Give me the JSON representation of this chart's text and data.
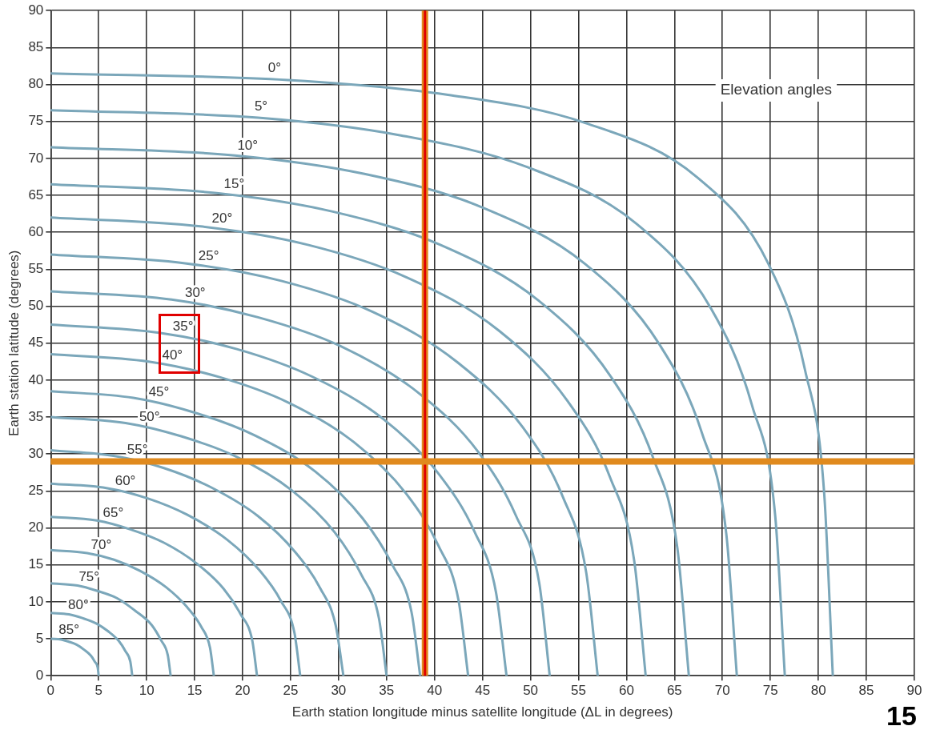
{
  "chart_data": {
    "type": "line",
    "xlabel": "Earth station longitude minus satellite longitude (ΔL in degrees)",
    "ylabel": "Earth station latitude (degrees)",
    "xlim": [
      0,
      90
    ],
    "xticks": [
      0,
      5,
      10,
      15,
      20,
      25,
      30,
      35,
      40,
      45,
      50,
      55,
      60,
      65,
      70,
      75,
      80,
      85,
      90
    ],
    "ylim": [
      0,
      90
    ],
    "yticks": [
      0,
      5,
      10,
      15,
      20,
      25,
      30,
      35,
      40,
      45,
      50,
      55,
      60,
      65,
      70,
      75,
      80,
      85,
      90
    ],
    "grid": true,
    "legend": false,
    "series": [
      {
        "name": "0°",
        "color": "#7ba7ba",
        "x": [
          0,
          24.7,
          41.4,
          55.7,
          67.4,
          74.8,
          78.6,
          80.6,
          81.5
        ],
        "values": [
          81.5,
          80.6,
          78.6,
          74.8,
          67.4,
          55.7,
          41.4,
          24.7,
          0
        ]
      },
      {
        "name": "5°",
        "color": "#7ba7ba",
        "x": [
          0,
          21.6,
          36.5,
          49.7,
          61.1,
          68.8,
          73.1,
          75.5,
          76.5
        ],
        "values": [
          76.5,
          75.5,
          73.1,
          68.8,
          61.1,
          49.7,
          36.5,
          21.6,
          0
        ]
      },
      {
        "name": "10°",
        "color": "#7ba7ba",
        "x": [
          0,
          19.2,
          32.7,
          44.9,
          55.7,
          63.4,
          67.9,
          70.4,
          71.5
        ],
        "values": [
          71.5,
          70.4,
          67.9,
          63.4,
          55.7,
          44.9,
          32.7,
          19.2,
          0
        ]
      },
      {
        "name": "15°",
        "color": "#7ba7ba",
        "x": [
          0,
          17.3,
          29.4,
          40.6,
          50.8,
          58.3,
          62.8,
          65.3,
          66.5
        ],
        "values": [
          66.5,
          65.3,
          62.8,
          58.3,
          50.8,
          40.6,
          29.4,
          17.3,
          0
        ]
      },
      {
        "name": "20°",
        "color": "#7ba7ba",
        "x": [
          0,
          15.6,
          26.8,
          37.1,
          46.7,
          53.9,
          58.3,
          60.8,
          62
        ],
        "values": [
          62,
          60.8,
          58.3,
          53.9,
          46.7,
          37.1,
          26.8,
          15.6,
          0
        ]
      },
      {
        "name": "25°",
        "color": "#7ba7ba",
        "x": [
          0,
          14.0,
          24.1,
          33.6,
          42.4,
          49.2,
          53.4,
          55.8,
          57
        ],
        "values": [
          57,
          55.8,
          53.4,
          49.2,
          42.4,
          33.6,
          24.1,
          14.0,
          0
        ]
      },
      {
        "name": "30°",
        "color": "#7ba7ba",
        "x": [
          0,
          12.6,
          21.6,
          30.2,
          38.3,
          44.6,
          48.5,
          50.9,
          52
        ],
        "values": [
          52,
          50.9,
          48.5,
          44.6,
          38.3,
          30.2,
          21.6,
          12.6,
          0
        ]
      },
      {
        "name": "35°",
        "color": "#7ba7ba",
        "x": [
          0,
          11.3,
          19.4,
          27.2,
          34.7,
          40.5,
          44.2,
          46.4,
          47.5
        ],
        "values": [
          47.5,
          46.4,
          44.2,
          40.5,
          34.7,
          27.2,
          19.4,
          11.3,
          0
        ]
      },
      {
        "name": "40°",
        "color": "#7ba7ba",
        "x": [
          0,
          10.2,
          17.6,
          24.7,
          31.6,
          37.0,
          40.4,
          42.5,
          43.5
        ],
        "values": [
          43.5,
          42.5,
          40.4,
          37.0,
          31.6,
          24.7,
          17.6,
          10.2,
          0
        ]
      },
      {
        "name": "45°",
        "color": "#7ba7ba",
        "x": [
          0,
          8.6,
          15.0,
          21.3,
          27.6,
          32.5,
          35.6,
          37.6,
          38.5
        ],
        "values": [
          38.5,
          37.6,
          35.6,
          32.5,
          27.6,
          21.3,
          15.0,
          8.6,
          0
        ]
      },
      {
        "name": "50°",
        "color": "#7ba7ba",
        "x": [
          0,
          7.8,
          13.6,
          19.4,
          25.1,
          29.6,
          32.4,
          34.2,
          35
        ],
        "values": [
          35,
          34.2,
          32.4,
          29.6,
          25.1,
          19.4,
          13.6,
          7.8,
          0
        ]
      },
      {
        "name": "55°",
        "color": "#7ba7ba",
        "x": [
          0,
          6.8,
          11.8,
          16.7,
          21.6,
          25.5,
          28.1,
          29.7,
          30.5
        ],
        "values": [
          30.5,
          29.7,
          28.1,
          25.5,
          21.6,
          16.7,
          11.8,
          6.8,
          0
        ]
      },
      {
        "name": "60°",
        "color": "#7ba7ba",
        "x": [
          0,
          5.8,
          10.1,
          14.2,
          18.4,
          21.8,
          24.0,
          25.4,
          26
        ],
        "values": [
          26,
          25.4,
          24.0,
          21.8,
          18.4,
          14.2,
          10.1,
          5.8,
          0
        ]
      },
      {
        "name": "65°",
        "color": "#7ba7ba",
        "x": [
          0,
          4.8,
          8.3,
          11.8,
          15.2,
          18.0,
          19.8,
          21.0,
          21.5
        ],
        "values": [
          21.5,
          21.0,
          19.8,
          18.0,
          15.2,
          11.8,
          8.3,
          4.8,
          0
        ]
      },
      {
        "name": "70°",
        "color": "#7ba7ba",
        "x": [
          0,
          3.8,
          6.6,
          9.3,
          12.0,
          14.2,
          15.7,
          16.6,
          17
        ],
        "values": [
          17,
          16.6,
          15.7,
          14.2,
          12.0,
          9.3,
          6.6,
          3.8,
          0
        ]
      },
      {
        "name": "75°",
        "color": "#7ba7ba",
        "x": [
          0,
          2.8,
          4.8,
          6.9,
          8.8,
          10.5,
          11.5,
          12.2,
          12.5
        ],
        "values": [
          12.5,
          12.2,
          11.5,
          10.5,
          8.8,
          6.9,
          4.8,
          2.8,
          0
        ]
      },
      {
        "name": "80°",
        "color": "#7ba7ba",
        "x": [
          0,
          1.9,
          3.3,
          4.7,
          6.0,
          7.1,
          7.8,
          8.3,
          8.5
        ],
        "values": [
          8.5,
          8.3,
          7.8,
          7.1,
          6.0,
          4.7,
          3.3,
          1.9,
          0
        ]
      },
      {
        "name": "85°",
        "color": "#7ba7ba",
        "x": [
          0,
          1.1,
          1.9,
          2.7,
          3.5,
          4.2,
          4.6,
          4.9,
          5
        ],
        "values": [
          5,
          4.9,
          4.6,
          4.2,
          3.5,
          2.7,
          1.9,
          1.1,
          0
        ]
      }
    ],
    "ref_lines": [
      {
        "axis": "x",
        "value": 39,
        "color": "#e08a1e"
      },
      {
        "axis": "x",
        "value": 39,
        "color": "#e00000"
      },
      {
        "axis": "y",
        "value": 29,
        "color": "#e08a1e"
      }
    ],
    "annotations": [
      "Elevation angles",
      "15"
    ]
  }
}
